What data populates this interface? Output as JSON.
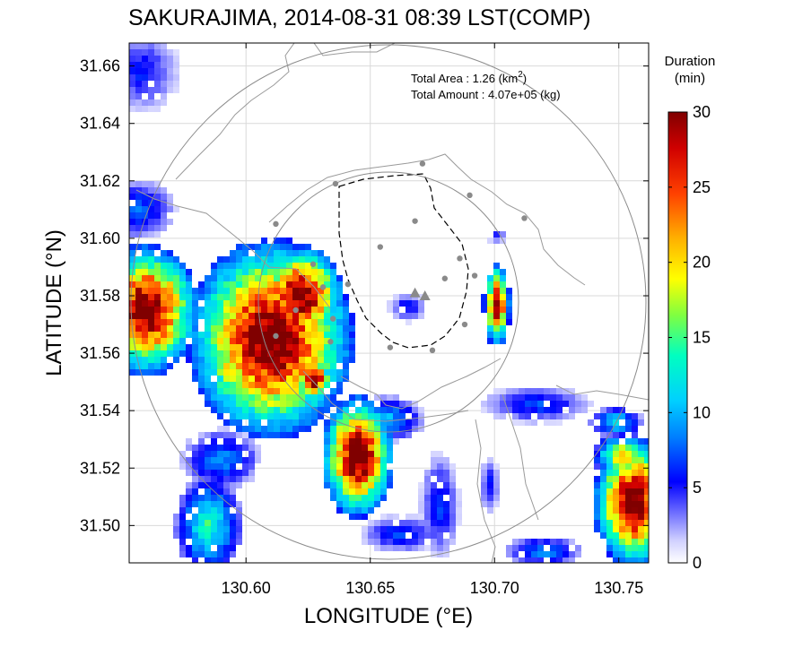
{
  "chart_data": {
    "type": "heatmap",
    "title": "SAKURAJIMA, 2014-08-31 08:39 LST(COMP)",
    "xlabel": "LONGITUDE (°E)",
    "ylabel": "LATITUDE (°N)",
    "xlim": [
      130.553,
      130.762
    ],
    "ylim": [
      31.487,
      31.668
    ],
    "xticks": [
      "130.60",
      "130.65",
      "130.70",
      "130.75"
    ],
    "xtick_values": [
      130.6,
      130.65,
      130.7,
      130.75
    ],
    "yticks": [
      "31.50",
      "31.52",
      "31.54",
      "31.56",
      "31.58",
      "31.60",
      "31.62",
      "31.64",
      "31.66"
    ],
    "ytick_values": [
      31.5,
      31.52,
      31.54,
      31.56,
      31.58,
      31.6,
      31.62,
      31.64,
      31.66
    ],
    "grid": true,
    "colorbar": {
      "title_line1": "Duration",
      "title_line2": "(min)",
      "min": 0,
      "max": 30,
      "ticks": [
        "0",
        "5",
        "10",
        "15",
        "20",
        "25",
        "30"
      ],
      "tick_values": [
        0,
        5,
        10,
        15,
        20,
        25,
        30
      ]
    },
    "annotation": {
      "area_label": "Total Area   : 1.26 (km",
      "area_sup": "2",
      "area_end": ")",
      "amount_label": "Total Amount : 4.07e+05 (kg)"
    },
    "vent_markers": [
      [
        130.668,
        31.581
      ],
      [
        130.672,
        31.58
      ]
    ],
    "station_points": [
      [
        130.671,
        31.626
      ],
      [
        130.636,
        31.619
      ],
      [
        130.69,
        31.615
      ],
      [
        130.612,
        31.605
      ],
      [
        130.668,
        31.606
      ],
      [
        130.712,
        31.607
      ],
      [
        130.654,
        31.597
      ],
      [
        130.686,
        31.593
      ],
      [
        130.627,
        31.591
      ],
      [
        130.692,
        31.587
      ],
      [
        130.68,
        31.586
      ],
      [
        130.631,
        31.583
      ],
      [
        130.641,
        31.584
      ],
      [
        130.635,
        31.572
      ],
      [
        130.612,
        31.566
      ],
      [
        130.634,
        31.564
      ],
      [
        130.658,
        31.562
      ],
      [
        130.675,
        31.561
      ],
      [
        130.688,
        31.57
      ],
      [
        130.62,
        31.575
      ]
    ],
    "blobs": [
      {
        "cx": 130.61,
        "cy": 31.565,
        "rx": 0.025,
        "ry": 0.026,
        "peak": 30
      },
      {
        "cx": 130.622,
        "cy": 31.58,
        "rx": 0.013,
        "ry": 0.013,
        "peak": 30
      },
      {
        "cx": 130.56,
        "cy": 31.575,
        "rx": 0.016,
        "ry": 0.017,
        "peak": 30
      },
      {
        "cx": 130.645,
        "cy": 31.524,
        "rx": 0.011,
        "ry": 0.016,
        "peak": 30
      },
      {
        "cx": 130.627,
        "cy": 31.551,
        "rx": 0.006,
        "ry": 0.006,
        "peak": 30
      },
      {
        "cx": 130.59,
        "cy": 31.523,
        "rx": 0.012,
        "ry": 0.008,
        "peak": 8
      },
      {
        "cx": 130.585,
        "cy": 31.5,
        "rx": 0.01,
        "ry": 0.013,
        "peak": 13
      },
      {
        "cx": 130.657,
        "cy": 31.537,
        "rx": 0.011,
        "ry": 0.006,
        "peak": 9
      },
      {
        "cx": 130.665,
        "cy": 31.576,
        "rx": 0.006,
        "ry": 0.004,
        "peak": 5
      },
      {
        "cx": 130.701,
        "cy": 31.577,
        "rx": 0.004,
        "ry": 0.011,
        "peak": 28
      },
      {
        "cx": 130.701,
        "cy": 31.601,
        "rx": 0.003,
        "ry": 0.002,
        "peak": 5
      },
      {
        "cx": 130.717,
        "cy": 31.542,
        "rx": 0.017,
        "ry": 0.005,
        "peak": 6
      },
      {
        "cx": 130.749,
        "cy": 31.536,
        "rx": 0.008,
        "ry": 0.004,
        "peak": 11
      },
      {
        "cx": 130.756,
        "cy": 31.508,
        "rx": 0.012,
        "ry": 0.017,
        "peak": 30
      },
      {
        "cx": 130.752,
        "cy": 31.524,
        "rx": 0.009,
        "ry": 0.006,
        "peak": 20
      },
      {
        "cx": 130.72,
        "cy": 31.491,
        "rx": 0.012,
        "ry": 0.004,
        "peak": 8
      },
      {
        "cx": 130.558,
        "cy": 31.658,
        "rx": 0.012,
        "ry": 0.011,
        "peak": 5
      },
      {
        "cx": 130.556,
        "cy": 31.61,
        "rx": 0.012,
        "ry": 0.008,
        "peak": 7
      },
      {
        "cx": 130.662,
        "cy": 31.497,
        "rx": 0.012,
        "ry": 0.005,
        "peak": 6
      },
      {
        "cx": 130.678,
        "cy": 31.507,
        "rx": 0.006,
        "ry": 0.014,
        "peak": 6
      },
      {
        "cx": 130.698,
        "cy": 31.514,
        "rx": 0.003,
        "ry": 0.008,
        "peak": 5
      }
    ]
  }
}
